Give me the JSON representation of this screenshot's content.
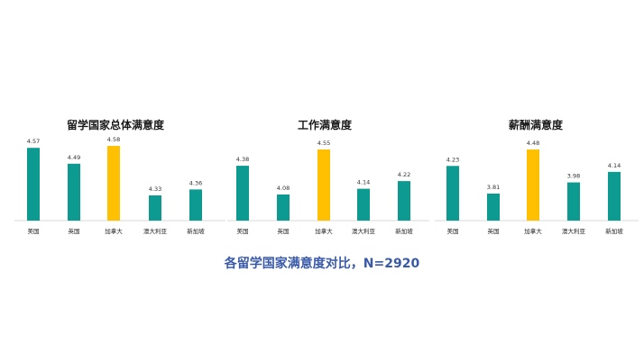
{
  "caption": "各留学国家满意度对比，N=2920",
  "colors": {
    "bar": "#0d9a91",
    "highlight": "#fec000"
  },
  "chart_data": [
    {
      "type": "bar",
      "title": "留学国家总体满意度",
      "categories": [
        "美国",
        "英国",
        "加拿大",
        "澳大利亚",
        "新加坡"
      ],
      "values": [
        4.57,
        4.49,
        4.58,
        4.33,
        4.36
      ],
      "highlight_index": 2,
      "xlabel": "",
      "ylabel": "",
      "ylim": [
        4.2,
        4.6
      ],
      "grid": false,
      "legend": "none"
    },
    {
      "type": "bar",
      "title": "工作满意度",
      "categories": [
        "美国",
        "英国",
        "加拿大",
        "澳大利亚",
        "新加坡"
      ],
      "values": [
        4.38,
        4.08,
        4.55,
        4.14,
        4.22
      ],
      "highlight_index": 2,
      "xlabel": "",
      "ylabel": "",
      "ylim": [
        3.9,
        4.6
      ],
      "grid": false,
      "legend": "none"
    },
    {
      "type": "bar",
      "title": "薪酬满意度",
      "categories": [
        "美国",
        "英国",
        "加拿大",
        "澳大利亚",
        "新加坡"
      ],
      "values": [
        4.23,
        3.81,
        4.48,
        3.98,
        4.14
      ],
      "highlight_index": 2,
      "xlabel": "",
      "ylabel": "",
      "ylim": [
        3.6,
        4.5
      ],
      "grid": false,
      "legend": "none"
    }
  ]
}
